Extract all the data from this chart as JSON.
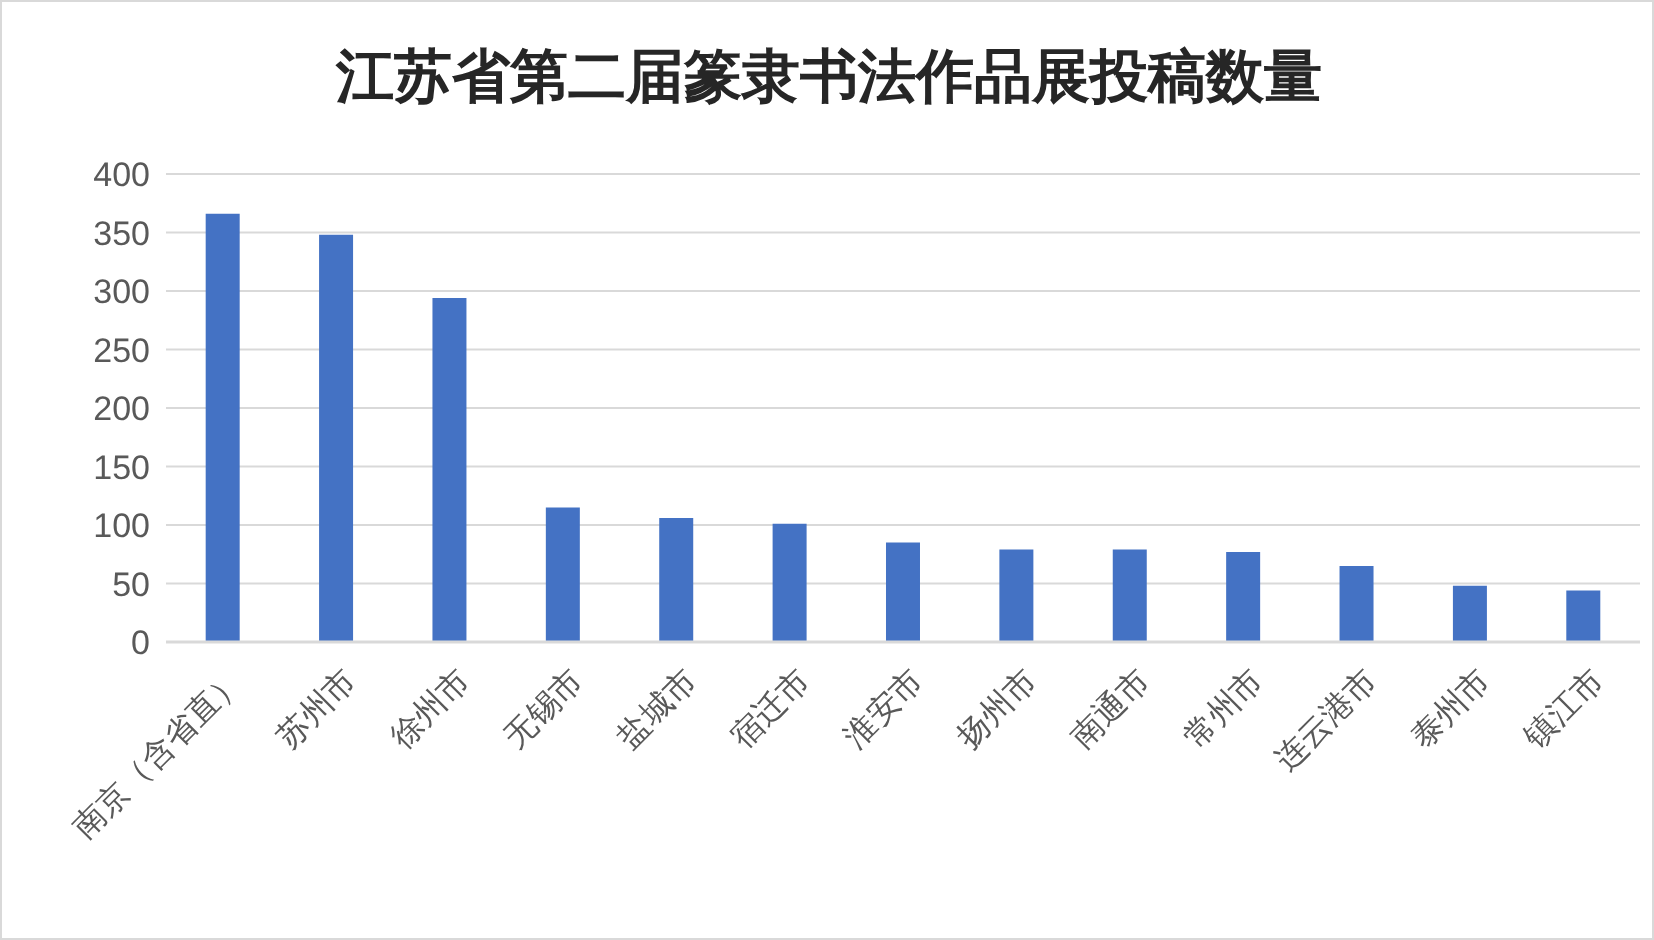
{
  "chart_data": {
    "type": "bar",
    "title": "江苏省第二届篆隶书法作品展投稿数量",
    "categories": [
      "南京（含省直）",
      "苏州市",
      "徐州市",
      "无锡市",
      "盐城市",
      "宿迁市",
      "淮安市",
      "扬州市",
      "南通市",
      "常州市",
      "连云港市",
      "泰州市",
      "镇江市"
    ],
    "values": [
      366,
      348,
      294,
      115,
      106,
      101,
      85,
      79,
      79,
      77,
      65,
      48,
      44
    ],
    "color": "#4472c4",
    "ylim": [
      0,
      400
    ],
    "yticks": [
      0,
      50,
      100,
      150,
      200,
      250,
      300,
      350,
      400
    ],
    "grid": "y"
  }
}
